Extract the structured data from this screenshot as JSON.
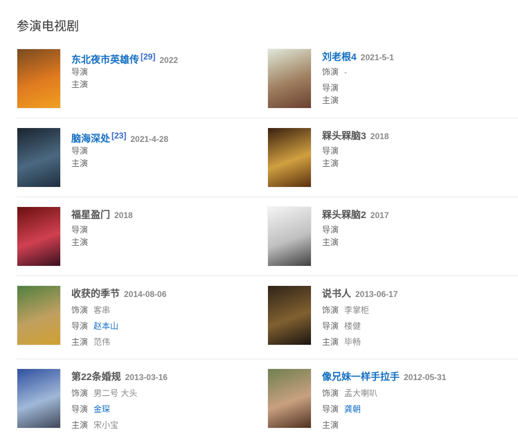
{
  "section_title": "参演电视剧",
  "items": [
    {
      "title": "东北夜市英雄传",
      "link": true,
      "ref": "[29]",
      "date": "2022",
      "lines": [
        {
          "label": "导演",
          "value": ""
        },
        {
          "label": "主演",
          "value": ""
        }
      ],
      "poster": [
        "#7a4a20",
        "#e07a20",
        "#f0a020"
      ]
    },
    {
      "title": "刘老根4",
      "link": true,
      "ref": "",
      "date": "2021-5-1",
      "lines": [
        {
          "label": "饰演",
          "value": "-"
        },
        {
          "label": "导演",
          "value": ""
        },
        {
          "label": "主演",
          "value": ""
        }
      ],
      "poster": [
        "#dfe8d8",
        "#a08060",
        "#6a4030"
      ]
    },
    {
      "title": "脑海深处",
      "link": true,
      "ref": "[23]",
      "date": "2021-4-28",
      "lines": [
        {
          "label": "导演",
          "value": ""
        },
        {
          "label": "主演",
          "value": ""
        }
      ],
      "poster": [
        "#1a2430",
        "#4a6880",
        "#203040"
      ]
    },
    {
      "title": "槑头槑脑3",
      "link": false,
      "ref": "",
      "date": "2018",
      "lines": [
        {
          "label": "导演",
          "value": ""
        },
        {
          "label": "主演",
          "value": ""
        }
      ],
      "poster": [
        "#3a2010",
        "#d0a040",
        "#5a3010"
      ]
    },
    {
      "title": "福星盈门",
      "link": false,
      "ref": "",
      "date": "2018",
      "lines": [
        {
          "label": "导演",
          "value": ""
        },
        {
          "label": "主演",
          "value": ""
        }
      ],
      "poster": [
        "#6a1010",
        "#d04050",
        "#3a1020"
      ]
    },
    {
      "title": "槑头槑脑2",
      "link": false,
      "ref": "",
      "date": "2017",
      "lines": [
        {
          "label": "导演",
          "value": ""
        },
        {
          "label": "主演",
          "value": ""
        }
      ],
      "poster": [
        "#f4f4f4",
        "#c0c0c0",
        "#404040"
      ]
    },
    {
      "title": "收获的季节",
      "link": false,
      "ref": "",
      "date": "2014-08-06",
      "lines": [
        {
          "label": "饰演",
          "value": "客串"
        },
        {
          "label": "导演",
          "value": "赵本山",
          "link": true
        },
        {
          "label": "主演",
          "value": "范伟"
        }
      ],
      "poster": [
        "#508040",
        "#c0a060",
        "#d0a030"
      ]
    },
    {
      "title": "说书人",
      "link": false,
      "ref": "",
      "date": "2013-06-17",
      "lines": [
        {
          "label": "饰演",
          "value": "李掌柜"
        },
        {
          "label": "导演",
          "value": "楼健"
        },
        {
          "label": "主演",
          "value": "毕畅"
        }
      ],
      "poster": [
        "#302418",
        "#806030",
        "#1a1410"
      ]
    },
    {
      "title": "第22条婚规",
      "link": false,
      "ref": "",
      "date": "2013-03-16",
      "lines": [
        {
          "label": "饰演",
          "value": "男二号 大头"
        },
        {
          "label": "导演",
          "value": "金琛",
          "link": true
        },
        {
          "label": "主演",
          "value": "宋小宝"
        }
      ],
      "poster": [
        "#3050a0",
        "#a0b8d8",
        "#404858"
      ]
    },
    {
      "title": "像兄妹一样手拉手",
      "link": true,
      "ref": "",
      "date": "2012-05-31",
      "lines": [
        {
          "label": "饰演",
          "value": "孟大喇叭"
        },
        {
          "label": "导演",
          "value": "龚朝",
          "link": true
        },
        {
          "label": "主演",
          "value": ""
        }
      ],
      "poster": [
        "#708050",
        "#c8a080",
        "#503020"
      ]
    }
  ]
}
